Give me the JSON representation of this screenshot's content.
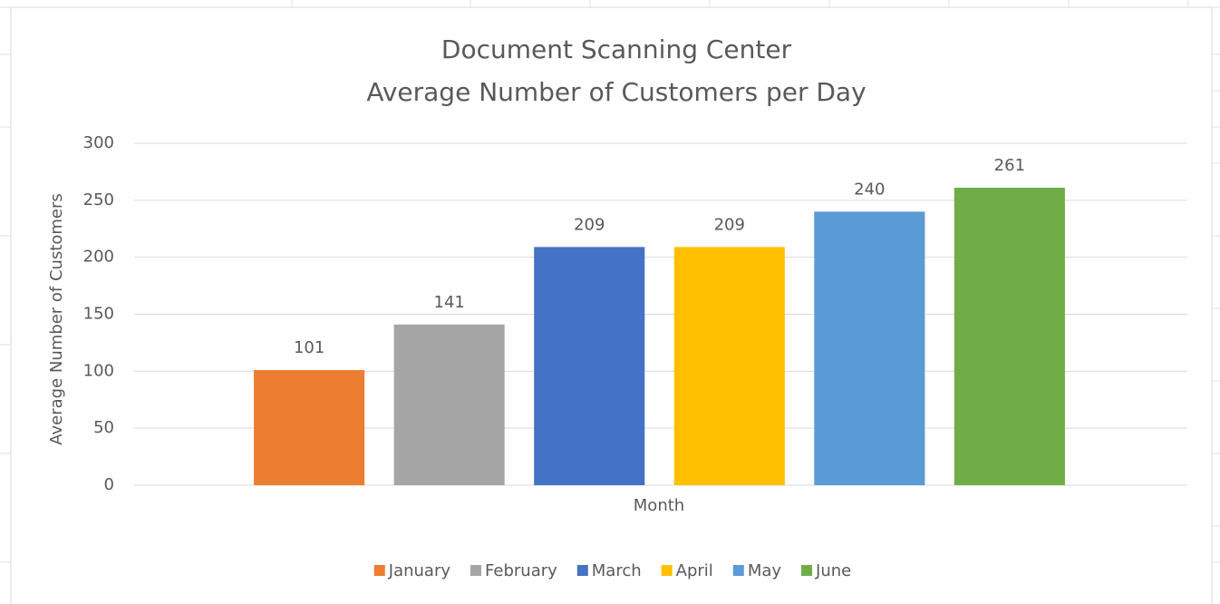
{
  "chart_data": {
    "type": "bar",
    "title": "Document Scanning Center",
    "subtitle": "Average Number of Customers per Day",
    "y_label": "Average Number of Customers",
    "x_label": "Month",
    "categories": [
      null
    ],
    "series": [
      {
        "name": "January",
        "color": "#ed7d31",
        "values": [
          101
        ]
      },
      {
        "name": "February",
        "color": "#a5a5a5",
        "values": [
          141
        ]
      },
      {
        "name": "March",
        "color": "#4472c4",
        "values": [
          209
        ]
      },
      {
        "name": "April",
        "color": "#ffc000",
        "values": [
          209
        ]
      },
      {
        "name": "May",
        "color": "#5b9bd5",
        "values": [
          240
        ]
      },
      {
        "name": "June",
        "color": "#70ad47",
        "values": [
          261
        ]
      }
    ],
    "ylim": [
      0,
      300
    ],
    "yticks": [
      0,
      50,
      100,
      150,
      200,
      250,
      300
    ],
    "grid": true,
    "legend": "bottom"
  }
}
